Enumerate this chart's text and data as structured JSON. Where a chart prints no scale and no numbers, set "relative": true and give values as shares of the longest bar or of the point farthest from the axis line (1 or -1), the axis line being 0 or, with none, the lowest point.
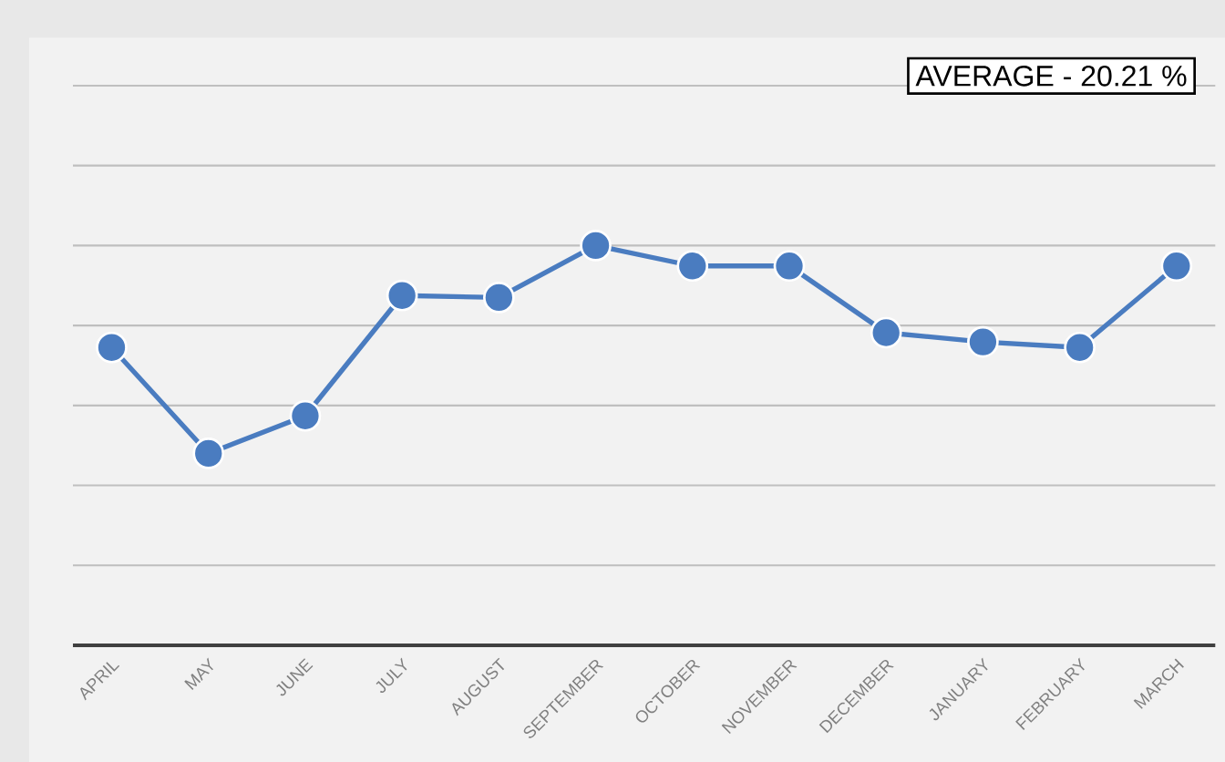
{
  "chart_data": {
    "type": "line",
    "relative": true,
    "categories": [
      "APRIL",
      "MAY",
      "JUNE",
      "JULY",
      "AUGUST",
      "SEPTEMBER",
      "OCTOBER",
      "NOVEMBER",
      "DECEMBER",
      "JANUARY",
      "FEBRUARY",
      "MARCH"
    ],
    "series": [
      {
        "color": "#4a7cc0",
        "values": [
          0.745,
          0.48,
          0.574,
          0.875,
          0.87,
          1,
          0.949,
          0.949,
          0.782,
          0.759,
          0.745,
          0.949
        ]
      }
    ],
    "annotations": [
      "AVERAGE - 20.21 %"
    ],
    "grid": "y",
    "marker": "circle",
    "line_style": "solid"
  }
}
